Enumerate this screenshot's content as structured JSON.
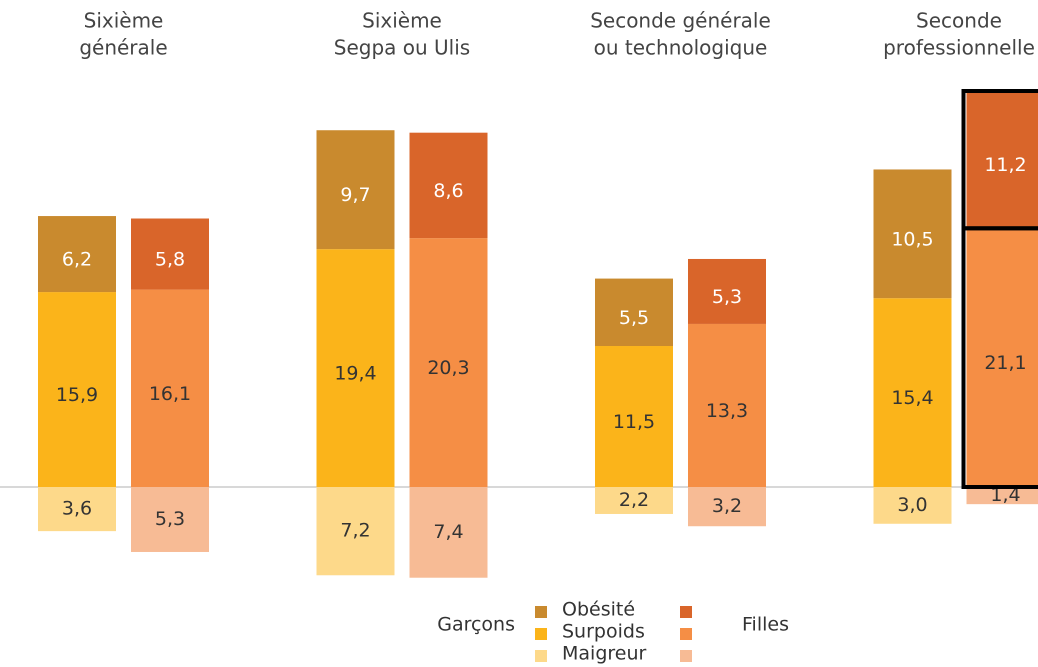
{
  "chart_data": {
    "type": "bar",
    "stacked": true,
    "categories": [
      [
        "Sixième",
        "générale"
      ],
      [
        "Sixième",
        "Segpa ou Ulis"
      ],
      [
        "Seconde générale",
        "ou technologique"
      ],
      [
        "Seconde",
        "professionnelle"
      ]
    ],
    "groups": [
      {
        "name": "Garçons",
        "series": [
          {
            "name": "Maigreur",
            "color": "#FDD98A",
            "direction": "down",
            "values": [
              3.6,
              7.2,
              2.2,
              3.0
            ],
            "value_labels": [
              "3,6",
              "7,2",
              "2,2",
              "3,0"
            ]
          },
          {
            "name": "Surpoids",
            "color": "#FBB41A",
            "direction": "up",
            "values": [
              15.9,
              19.4,
              11.5,
              15.4
            ],
            "value_labels": [
              "15,9",
              "19,4",
              "11,5",
              "15,4"
            ]
          },
          {
            "name": "Obésité",
            "color": "#C98A2E",
            "direction": "up",
            "values": [
              6.2,
              9.7,
              5.5,
              10.5
            ],
            "value_labels": [
              "6,2",
              "9,7",
              "5,5",
              "10,5"
            ]
          }
        ]
      },
      {
        "name": "Filles",
        "series": [
          {
            "name": "Maigreur",
            "color": "#F7BB95",
            "direction": "down",
            "values": [
              5.3,
              7.4,
              3.2,
              1.4
            ],
            "value_labels": [
              "5,3",
              "7,4",
              "3,2",
              "1,4"
            ]
          },
          {
            "name": "Surpoids",
            "color": "#F58E45",
            "direction": "up",
            "values": [
              16.1,
              20.3,
              13.3,
              21.1
            ],
            "value_labels": [
              "16,1",
              "20,3",
              "13,3",
              "21,1"
            ]
          },
          {
            "name": "Obésité",
            "color": "#D9652A",
            "direction": "up",
            "values": [
              5.8,
              8.6,
              5.3,
              11.2
            ],
            "value_labels": [
              "5,8",
              "8,6",
              "5,3",
              "11,2"
            ]
          }
        ]
      }
    ]
  }
}
